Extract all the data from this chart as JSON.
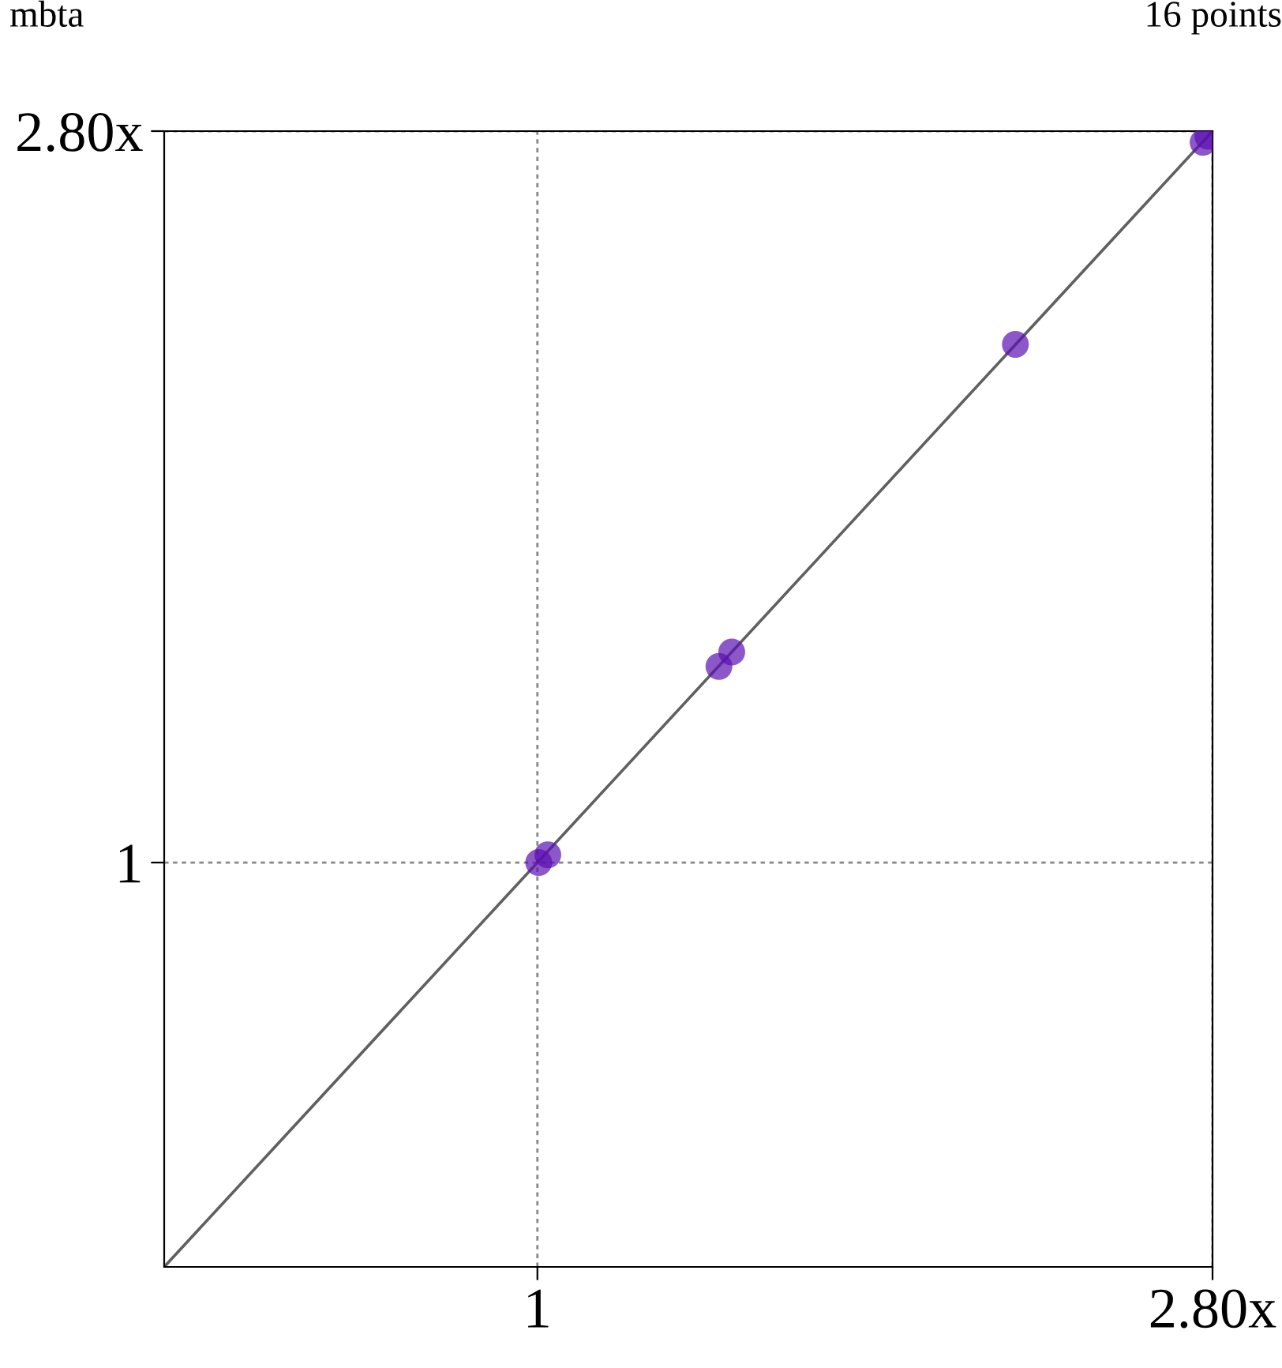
{
  "chart_data": {
    "type": "scatter",
    "title": "mbta",
    "annotations": [
      "16 points"
    ],
    "xlim": [
      0.566,
      2.8
    ],
    "ylim": [
      0.566,
      2.8
    ],
    "log": "xy",
    "xticks": [
      1,
      {
        "value": 2.8,
        "label": "2.80x"
      }
    ],
    "yticks": [
      1,
      {
        "value": 2.8,
        "label": "2.80x"
      }
    ],
    "grid": true,
    "series": [
      {
        "type": "line",
        "color": "#606060",
        "x": [
          0.566,
          2.8
        ],
        "values": [
          0.566,
          2.8
        ]
      },
      {
        "color": "#5b0fb0",
        "marker": "circle",
        "x": [
          1.002,
          1.016,
          1.319,
          1.345,
          2.073,
          2.76,
          2.78
        ],
        "values": [
          1.0,
          1.011,
          1.318,
          1.345,
          2.074,
          2.756,
          2.78
        ]
      }
    ]
  }
}
